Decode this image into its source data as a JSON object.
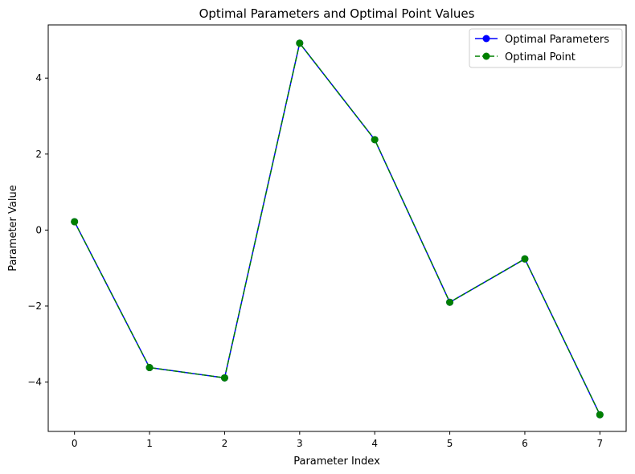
{
  "chart_data": {
    "type": "line",
    "title": "Optimal Parameters and Optimal Point Values",
    "xlabel": "Parameter Index",
    "ylabel": "Parameter Value",
    "x": [
      0,
      1,
      2,
      3,
      4,
      5,
      6,
      7
    ],
    "xlim": [
      -0.35,
      7.35
    ],
    "ylim": [
      -5.3,
      5.4
    ],
    "x_ticks": [
      0,
      1,
      2,
      3,
      4,
      5,
      6,
      7
    ],
    "y_ticks": [
      -4,
      -2,
      0,
      2,
      4
    ],
    "x_tick_labels": [
      "0",
      "1",
      "2",
      "3",
      "4",
      "5",
      "6",
      "7"
    ],
    "y_tick_labels": [
      "−4",
      "−2",
      "0",
      "2",
      "4"
    ],
    "grid": false,
    "legend_position": "top-right",
    "series": [
      {
        "name": "Optimal Parameters",
        "values": [
          0.22,
          -3.62,
          -3.89,
          4.92,
          2.38,
          -1.9,
          -0.76,
          -4.86
        ],
        "color": "#0000ff",
        "line_style": "solid",
        "marker": "circle"
      },
      {
        "name": "Optimal Point",
        "values": [
          0.22,
          -3.62,
          -3.89,
          4.92,
          2.38,
          -1.9,
          -0.76,
          -4.86
        ],
        "color": "#008000",
        "line_style": "dashed",
        "marker": "circle"
      }
    ]
  }
}
